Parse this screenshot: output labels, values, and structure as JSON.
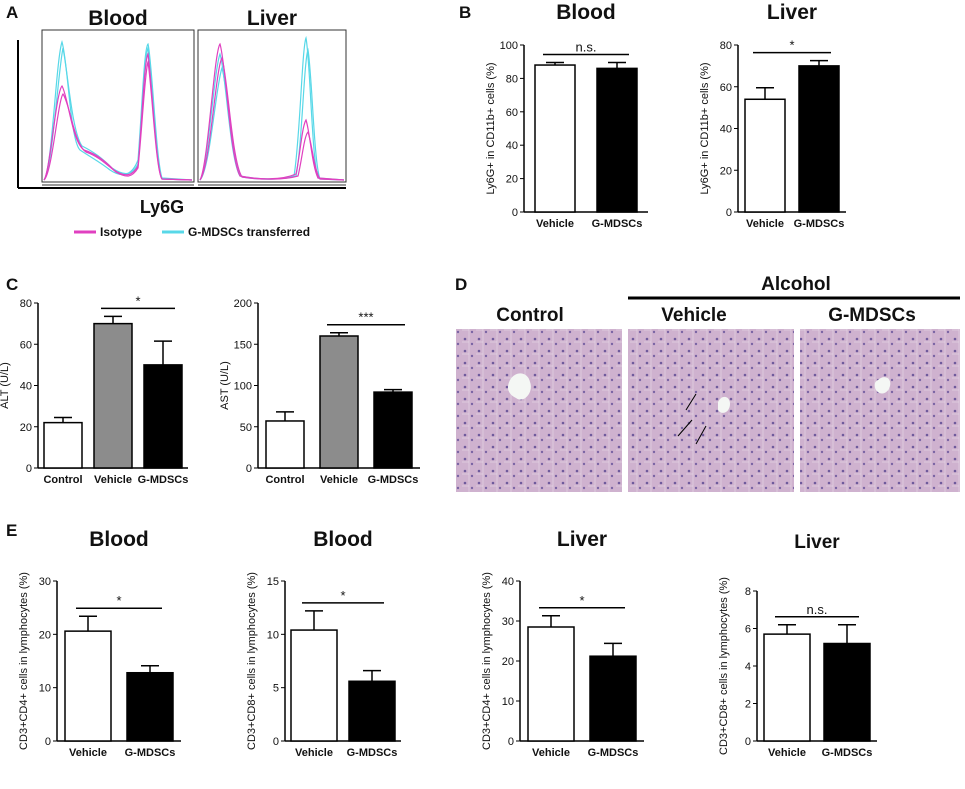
{
  "colors": {
    "vehicle_fill": "#ffffff",
    "gmdsc_fill": "#000000",
    "vehicle_grey": "#8c8c8c",
    "isotype": "#e040c0",
    "transferred": "#58d8e8",
    "tissue_bg": "#c9a8c8"
  },
  "panel_a": {
    "letter": "A",
    "blood_label": "Blood",
    "liver_label": "Liver",
    "xlabel": "Ly6G",
    "legend_isotype": "Isotype",
    "legend_transferred": "G-MDSCs transferred"
  },
  "panel_b": {
    "letter": "B"
  },
  "panel_c": {
    "letter": "C"
  },
  "panel_d": {
    "letter": "D",
    "alcohol_label": "Alcohol",
    "control_label": "Control",
    "vehicle_label": "Vehicle",
    "gmdsc_label": "G-MDSCs"
  },
  "panel_e": {
    "letter": "E"
  },
  "chart_data": [
    {
      "panel": "B",
      "type": "bar",
      "title": "Blood",
      "ylabel": "Ly6G+ in CD11b+ cells (%)",
      "categories": [
        "Vehicle",
        "G-MDSCs"
      ],
      "values": [
        88,
        86
      ],
      "errors": [
        1.5,
        3.5
      ],
      "ylim": [
        0,
        100
      ],
      "yticks": [
        "0",
        "20",
        "40",
        "60",
        "80",
        "100"
      ],
      "significance": "n.s."
    },
    {
      "panel": "B",
      "type": "bar",
      "title": "Liver",
      "ylabel": "Ly6G+ in CD11b+ cells (%)",
      "categories": [
        "Vehicle",
        "G-MDSCs"
      ],
      "values": [
        54,
        70
      ],
      "errors": [
        5.5,
        2.5
      ],
      "ylim": [
        0,
        80
      ],
      "yticks": [
        "0",
        "20",
        "40",
        "60",
        "80"
      ],
      "significance": "*"
    },
    {
      "panel": "C",
      "type": "bar",
      "title": "",
      "ylabel": "ALT (U/L)",
      "categories": [
        "Control",
        "Vehicle",
        "G-MDSCs"
      ],
      "values": [
        22,
        70,
        50
      ],
      "errors": [
        2.5,
        3.5,
        11.5
      ],
      "ylim": [
        0,
        80
      ],
      "yticks": [
        "0",
        "20",
        "40",
        "60",
        "80"
      ],
      "significance": "*"
    },
    {
      "panel": "C",
      "type": "bar",
      "title": "",
      "ylabel": "AST (U/L)",
      "categories": [
        "Control",
        "Vehicle",
        "G-MDSCs"
      ],
      "values": [
        57,
        160,
        92
      ],
      "errors": [
        11,
        4,
        3
      ],
      "ylim": [
        0,
        200
      ],
      "yticks": [
        "0",
        "50",
        "100",
        "150",
        "200"
      ],
      "significance": "***"
    },
    {
      "panel": "E",
      "type": "bar",
      "title": "Blood",
      "ylabel": "CD3+CD4+ cells in lymphocytes (%)",
      "categories": [
        "Vehicle",
        "G-MDSCs"
      ],
      "values": [
        20.6,
        12.8
      ],
      "errors": [
        2.8,
        1.3
      ],
      "ylim": [
        0,
        30
      ],
      "yticks": [
        "0",
        "10",
        "20",
        "30"
      ],
      "significance": "*"
    },
    {
      "panel": "E",
      "type": "bar",
      "title": "Blood",
      "ylabel": "CD3+CD8+ cells in lymphocytes (%)",
      "categories": [
        "Vehicle",
        "G-MDSCs"
      ],
      "values": [
        10.4,
        5.6
      ],
      "errors": [
        1.8,
        1.0
      ],
      "ylim": [
        0,
        15
      ],
      "yticks": [
        "0",
        "5",
        "10",
        "15"
      ],
      "significance": "*"
    },
    {
      "panel": "E",
      "type": "bar",
      "title": "Liver",
      "ylabel": "CD3+CD4+ cells in lymphocytes (%)",
      "categories": [
        "Vehicle",
        "G-MDSCs"
      ],
      "values": [
        28.5,
        21.2
      ],
      "errors": [
        2.8,
        3.2
      ],
      "ylim": [
        0,
        40
      ],
      "yticks": [
        "0",
        "10",
        "20",
        "30",
        "40"
      ],
      "significance": "*"
    },
    {
      "panel": "E",
      "type": "bar",
      "title": "Liver",
      "ylabel": "CD3+CD8+ cells in lymphocytes (%)",
      "categories": [
        "Vehicle",
        "G-MDSCs"
      ],
      "values": [
        5.7,
        5.2
      ],
      "errors": [
        0.5,
        1.0
      ],
      "ylim": [
        0,
        8
      ],
      "yticks": [
        "0",
        "2",
        "4",
        "6",
        "8"
      ],
      "significance": "n.s."
    }
  ]
}
